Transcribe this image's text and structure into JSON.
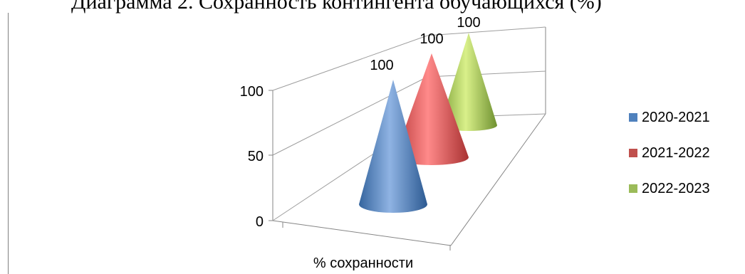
{
  "chart_data": {
    "type": "bar",
    "title": "Диаграмма 2. Сохранность контингента обучающихся (%)",
    "categories": [
      "% сохранности"
    ],
    "series": [
      {
        "name": "2020-2021",
        "values": [
          100
        ],
        "color": "#4f81bd"
      },
      {
        "name": "2021-2022",
        "values": [
          100
        ],
        "color": "#c0504d"
      },
      {
        "name": "2022-2023",
        "values": [
          100
        ],
        "color": "#9bbb59"
      }
    ],
    "ylim": [
      0,
      100
    ],
    "yticks": [
      "0",
      "50",
      "100"
    ],
    "data_labels": [
      "100",
      "100",
      "100"
    ],
    "legend": "right",
    "grid": true,
    "shape": "cone"
  }
}
